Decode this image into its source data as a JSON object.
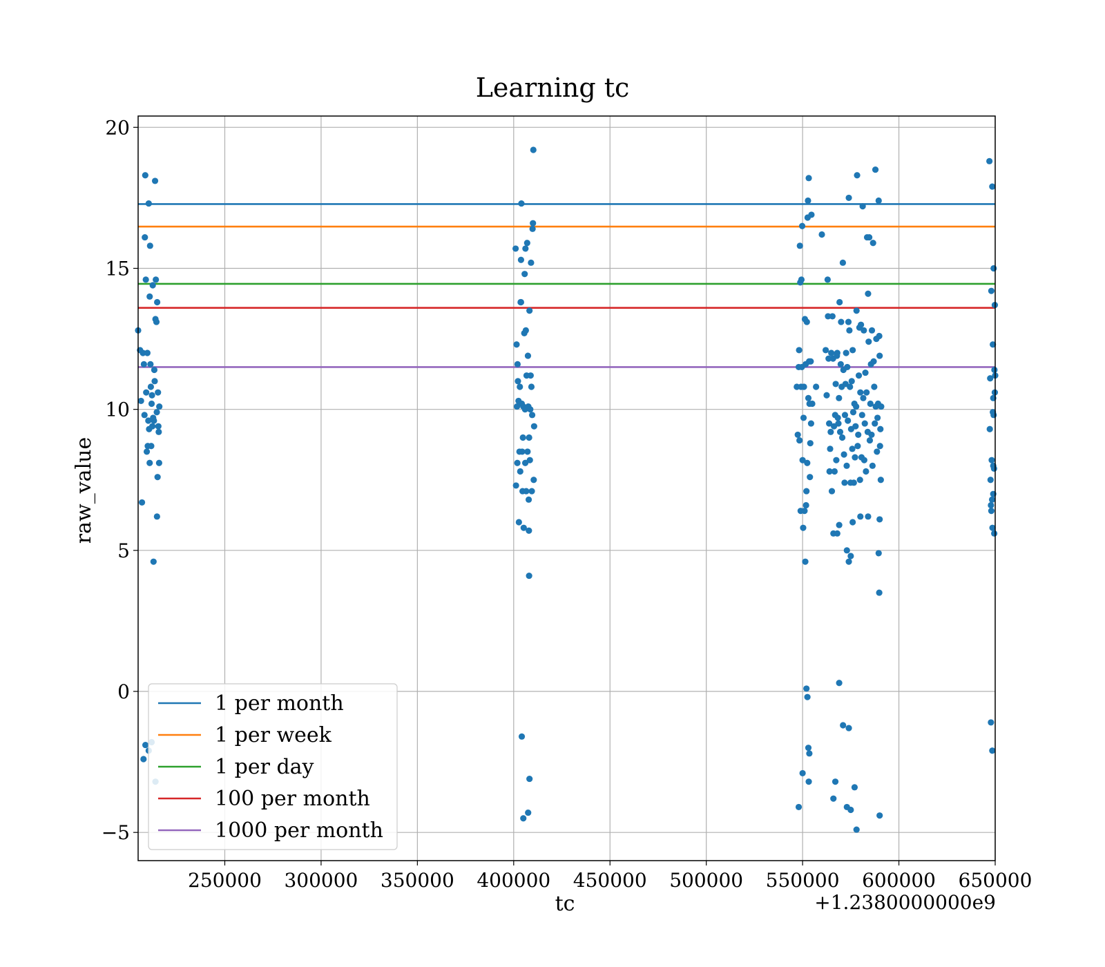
{
  "chart_data": {
    "type": "scatter",
    "title": "Learning tc",
    "xlabel": "tc",
    "ylabel": "raw_value",
    "x_offset_label": "+1.2380000000e9",
    "xlim": [
      205000,
      650000
    ],
    "ylim": [
      -6,
      20.4
    ],
    "xticks": [
      250000,
      300000,
      350000,
      400000,
      450000,
      500000,
      550000,
      600000,
      650000
    ],
    "xtick_labels": [
      "250000",
      "300000",
      "350000",
      "400000",
      "450000",
      "500000",
      "550000",
      "600000",
      "650000"
    ],
    "yticks": [
      -5,
      0,
      5,
      10,
      15,
      20
    ],
    "ytick_labels": [
      "−5",
      "0",
      "5",
      "10",
      "15",
      "20"
    ],
    "grid": true,
    "legend_position": "lower-left",
    "point_color": "#1f77b4",
    "hlines": [
      {
        "name": "1 per month",
        "y": 17.28,
        "color": "#1f77b4"
      },
      {
        "name": "1 per week",
        "y": 16.48,
        "color": "#ff7f0e"
      },
      {
        "name": "1 per day",
        "y": 14.45,
        "color": "#2ca02c"
      },
      {
        "name": "100 per month",
        "y": 13.6,
        "color": "#d62728"
      },
      {
        "name": "1000 per month",
        "y": 11.5,
        "color": "#9467bd"
      }
    ],
    "points": [
      [
        205000,
        12.8
      ],
      [
        206000,
        12.1
      ],
      [
        206500,
        10.3
      ],
      [
        207000,
        6.7
      ],
      [
        207500,
        12.0
      ],
      [
        208000,
        11.6
      ],
      [
        208300,
        9.8
      ],
      [
        208500,
        16.1
      ],
      [
        208700,
        18.3
      ],
      [
        209000,
        14.6
      ],
      [
        209200,
        10.6
      ],
      [
        209500,
        8.5
      ],
      [
        209800,
        12.0
      ],
      [
        210000,
        8.7
      ],
      [
        210300,
        9.6
      ],
      [
        210500,
        17.3
      ],
      [
        210700,
        9.3
      ],
      [
        211000,
        14.0
      ],
      [
        211200,
        15.8
      ],
      [
        211400,
        11.6
      ],
      [
        211600,
        10.8
      ],
      [
        211800,
        8.7
      ],
      [
        212000,
        10.2
      ],
      [
        212200,
        10.5
      ],
      [
        212400,
        9.4
      ],
      [
        212600,
        14.4
      ],
      [
        212800,
        9.7
      ],
      [
        213000,
        4.6
      ],
      [
        213200,
        9.6
      ],
      [
        213400,
        11.4
      ],
      [
        213600,
        11.0
      ],
      [
        213800,
        18.1
      ],
      [
        214000,
        13.2
      ],
      [
        214200,
        14.6
      ],
      [
        214500,
        13.1
      ],
      [
        214700,
        9.9
      ],
      [
        214900,
        13.8
      ],
      [
        215100,
        7.6
      ],
      [
        215300,
        10.6
      ],
      [
        215500,
        9.4
      ],
      [
        215700,
        9.2
      ],
      [
        215900,
        8.1
      ],
      [
        216000,
        10.1
      ],
      [
        214800,
        6.2
      ],
      [
        211000,
        8.1
      ],
      [
        207800,
        -2.4
      ],
      [
        212000,
        -1.8
      ],
      [
        214000,
        -3.2
      ],
      [
        210500,
        -2.1
      ],
      [
        208800,
        -1.9
      ],
      [
        401000,
        15.7
      ],
      [
        401200,
        7.3
      ],
      [
        401500,
        12.3
      ],
      [
        401700,
        10.1
      ],
      [
        402000,
        11.6
      ],
      [
        402200,
        11.0
      ],
      [
        402500,
        10.3
      ],
      [
        402700,
        6.0
      ],
      [
        403000,
        8.5
      ],
      [
        403200,
        10.8
      ],
      [
        403400,
        7.8
      ],
      [
        403600,
        13.8
      ],
      [
        403800,
        15.3
      ],
      [
        404000,
        17.3
      ],
      [
        404200,
        10.2
      ],
      [
        404400,
        8.5
      ],
      [
        404600,
        7.1
      ],
      [
        404800,
        9.0
      ],
      [
        405000,
        10.1
      ],
      [
        405200,
        5.8
      ],
      [
        405500,
        12.7
      ],
      [
        405700,
        14.8
      ],
      [
        405900,
        10.0
      ],
      [
        406100,
        15.7
      ],
      [
        406300,
        12.8
      ],
      [
        406500,
        7.1
      ],
      [
        406700,
        11.2
      ],
      [
        407000,
        15.9
      ],
      [
        407200,
        8.5
      ],
      [
        407400,
        11.9
      ],
      [
        407600,
        10.1
      ],
      [
        407800,
        6.8
      ],
      [
        408000,
        9.0
      ],
      [
        408200,
        13.5
      ],
      [
        408400,
        8.2
      ],
      [
        408600,
        10.0
      ],
      [
        408800,
        11.2
      ],
      [
        409000,
        15.2
      ],
      [
        409200,
        10.8
      ],
      [
        409400,
        7.1
      ],
      [
        409600,
        9.8
      ],
      [
        409800,
        16.4
      ],
      [
        410000,
        16.6
      ],
      [
        410200,
        19.2
      ],
      [
        410400,
        7.5
      ],
      [
        410600,
        9.4
      ],
      [
        408000,
        4.1
      ],
      [
        407900,
        5.7
      ],
      [
        404200,
        -1.6
      ],
      [
        408200,
        -3.1
      ],
      [
        407500,
        -4.3
      ],
      [
        405000,
        -4.5
      ],
      [
        403800,
        13.8
      ],
      [
        401900,
        8.1
      ],
      [
        406000,
        8.1
      ],
      [
        547000,
        10.8
      ],
      [
        547500,
        9.1
      ],
      [
        548000,
        11.5
      ],
      [
        548200,
        12.1
      ],
      [
        548400,
        8.9
      ],
      [
        548600,
        15.8
      ],
      [
        548800,
        14.5
      ],
      [
        549000,
        6.4
      ],
      [
        549200,
        10.8
      ],
      [
        549400,
        14.6
      ],
      [
        549600,
        11.5
      ],
      [
        549800,
        16.5
      ],
      [
        550000,
        8.2
      ],
      [
        550300,
        5.8
      ],
      [
        550500,
        9.7
      ],
      [
        550700,
        10.8
      ],
      [
        551000,
        6.4
      ],
      [
        551200,
        13.2
      ],
      [
        551400,
        4.6
      ],
      [
        551600,
        11.6
      ],
      [
        551800,
        6.6
      ],
      [
        552000,
        7.1
      ],
      [
        552200,
        13.1
      ],
      [
        552400,
        8.1
      ],
      [
        552600,
        16.8
      ],
      [
        552800,
        17.4
      ],
      [
        553000,
        10.4
      ],
      [
        553200,
        18.2
      ],
      [
        553400,
        11.7
      ],
      [
        553600,
        10.2
      ],
      [
        553800,
        7.6
      ],
      [
        554000,
        8.8
      ],
      [
        554200,
        11.7
      ],
      [
        554400,
        9.5
      ],
      [
        554600,
        16.9
      ],
      [
        555000,
        10.2
      ],
      [
        557000,
        10.8
      ],
      [
        560000,
        16.2
      ],
      [
        562000,
        12.1
      ],
      [
        562500,
        10.5
      ],
      [
        563000,
        14.6
      ],
      [
        563200,
        13.3
      ],
      [
        563500,
        11.8
      ],
      [
        563800,
        9.5
      ],
      [
        564000,
        7.8
      ],
      [
        564300,
        8.6
      ],
      [
        564600,
        9.2
      ],
      [
        564900,
        12.0
      ],
      [
        565200,
        7.1
      ],
      [
        565500,
        13.3
      ],
      [
        565800,
        11.8
      ],
      [
        566000,
        5.6
      ],
      [
        566300,
        9.4
      ],
      [
        566600,
        7.8
      ],
      [
        566900,
        9.8
      ],
      [
        567200,
        10.9
      ],
      [
        567500,
        8.2
      ],
      [
        567800,
        11.9
      ],
      [
        568000,
        12.0
      ],
      [
        568300,
        9.7
      ],
      [
        568600,
        9.5
      ],
      [
        568900,
        10.4
      ],
      [
        569200,
        13.8
      ],
      [
        569500,
        9.2
      ],
      [
        569800,
        11.6
      ],
      [
        570000,
        13.1
      ],
      [
        570300,
        10.8
      ],
      [
        570600,
        9.0
      ],
      [
        570900,
        15.2
      ],
      [
        571200,
        11.4
      ],
      [
        571500,
        8.4
      ],
      [
        571800,
        7.4
      ],
      [
        572000,
        9.8
      ],
      [
        572300,
        10.9
      ],
      [
        572600,
        12.0
      ],
      [
        572900,
        8.0
      ],
      [
        573200,
        11.5
      ],
      [
        573500,
        9.6
      ],
      [
        573800,
        13.1
      ],
      [
        574000,
        17.5
      ],
      [
        574300,
        12.8
      ],
      [
        574600,
        10.8
      ],
      [
        574900,
        7.4
      ],
      [
        575200,
        9.3
      ],
      [
        575500,
        11.0
      ],
      [
        575800,
        8.6
      ],
      [
        576000,
        12.1
      ],
      [
        576300,
        9.9
      ],
      [
        576600,
        7.4
      ],
      [
        576900,
        10.2
      ],
      [
        577200,
        8.3
      ],
      [
        577500,
        9.4
      ],
      [
        577800,
        10.1
      ],
      [
        578000,
        13.5
      ],
      [
        578300,
        18.3
      ],
      [
        578600,
        8.7
      ],
      [
        578900,
        9.1
      ],
      [
        579200,
        11.2
      ],
      [
        579500,
        12.9
      ],
      [
        579800,
        7.5
      ],
      [
        580000,
        10.6
      ],
      [
        580300,
        13.0
      ],
      [
        580600,
        8.3
      ],
      [
        580900,
        9.8
      ],
      [
        581200,
        17.2
      ],
      [
        581500,
        10.4
      ],
      [
        581800,
        12.8
      ],
      [
        582000,
        8.2
      ],
      [
        582300,
        9.5
      ],
      [
        582600,
        11.3
      ],
      [
        582900,
        7.8
      ],
      [
        583200,
        10.6
      ],
      [
        583500,
        16.1
      ],
      [
        583800,
        9.2
      ],
      [
        584000,
        14.1
      ],
      [
        584300,
        12.4
      ],
      [
        584600,
        16.1
      ],
      [
        584900,
        8.9
      ],
      [
        585200,
        10.2
      ],
      [
        585500,
        11.6
      ],
      [
        585800,
        9.1
      ],
      [
        586000,
        12.8
      ],
      [
        586300,
        8.0
      ],
      [
        586600,
        15.9
      ],
      [
        586900,
        11.7
      ],
      [
        587200,
        10.8
      ],
      [
        587500,
        9.5
      ],
      [
        587800,
        18.5
      ],
      [
        588000,
        10.1
      ],
      [
        588300,
        12.5
      ],
      [
        588600,
        8.5
      ],
      [
        588900,
        9.7
      ],
      [
        589200,
        10.2
      ],
      [
        589500,
        17.4
      ],
      [
        589800,
        12.6
      ],
      [
        590000,
        11.9
      ],
      [
        590200,
        8.7
      ],
      [
        590400,
        9.3
      ],
      [
        590600,
        7.5
      ],
      [
        590800,
        10.1
      ],
      [
        590000,
        6.1
      ],
      [
        589500,
        4.9
      ],
      [
        589800,
        3.5
      ],
      [
        584000,
        6.2
      ],
      [
        580000,
        6.2
      ],
      [
        576000,
        6.0
      ],
      [
        573000,
        5.0
      ],
      [
        574000,
        4.6
      ],
      [
        568000,
        5.6
      ],
      [
        569000,
        5.9
      ],
      [
        575000,
        4.8
      ],
      [
        548000,
        -4.1
      ],
      [
        550000,
        -2.9
      ],
      [
        552000,
        0.1
      ],
      [
        552500,
        -0.2
      ],
      [
        553000,
        -2.0
      ],
      [
        553500,
        -2.2
      ],
      [
        553200,
        -3.2
      ],
      [
        566000,
        -3.8
      ],
      [
        567000,
        -3.2
      ],
      [
        569000,
        0.3
      ],
      [
        571000,
        -1.2
      ],
      [
        573000,
        -4.1
      ],
      [
        574000,
        -1.3
      ],
      [
        575000,
        -4.2
      ],
      [
        577000,
        -3.4
      ],
      [
        578000,
        -4.9
      ],
      [
        590000,
        -4.4
      ],
      [
        647000,
        18.8
      ],
      [
        647200,
        9.3
      ],
      [
        647400,
        11.1
      ],
      [
        647600,
        7.5
      ],
      [
        647800,
        6.6
      ],
      [
        648000,
        14.2
      ],
      [
        648200,
        8.2
      ],
      [
        648400,
        6.8
      ],
      [
        648600,
        5.8
      ],
      [
        648800,
        12.3
      ],
      [
        649000,
        10.4
      ],
      [
        649200,
        9.8
      ],
      [
        649400,
        7.9
      ],
      [
        649600,
        11.4
      ],
      [
        649800,
        13.7
      ],
      [
        650000,
        11.2
      ],
      [
        648500,
        17.9
      ],
      [
        649200,
        15.0
      ],
      [
        649800,
        10.6
      ],
      [
        649000,
        8.0
      ],
      [
        648000,
        6.4
      ],
      [
        649500,
        5.6
      ],
      [
        647800,
        -1.1
      ],
      [
        648500,
        -2.1
      ],
      [
        649000,
        7.0
      ],
      [
        648800,
        9.9
      ]
    ]
  }
}
